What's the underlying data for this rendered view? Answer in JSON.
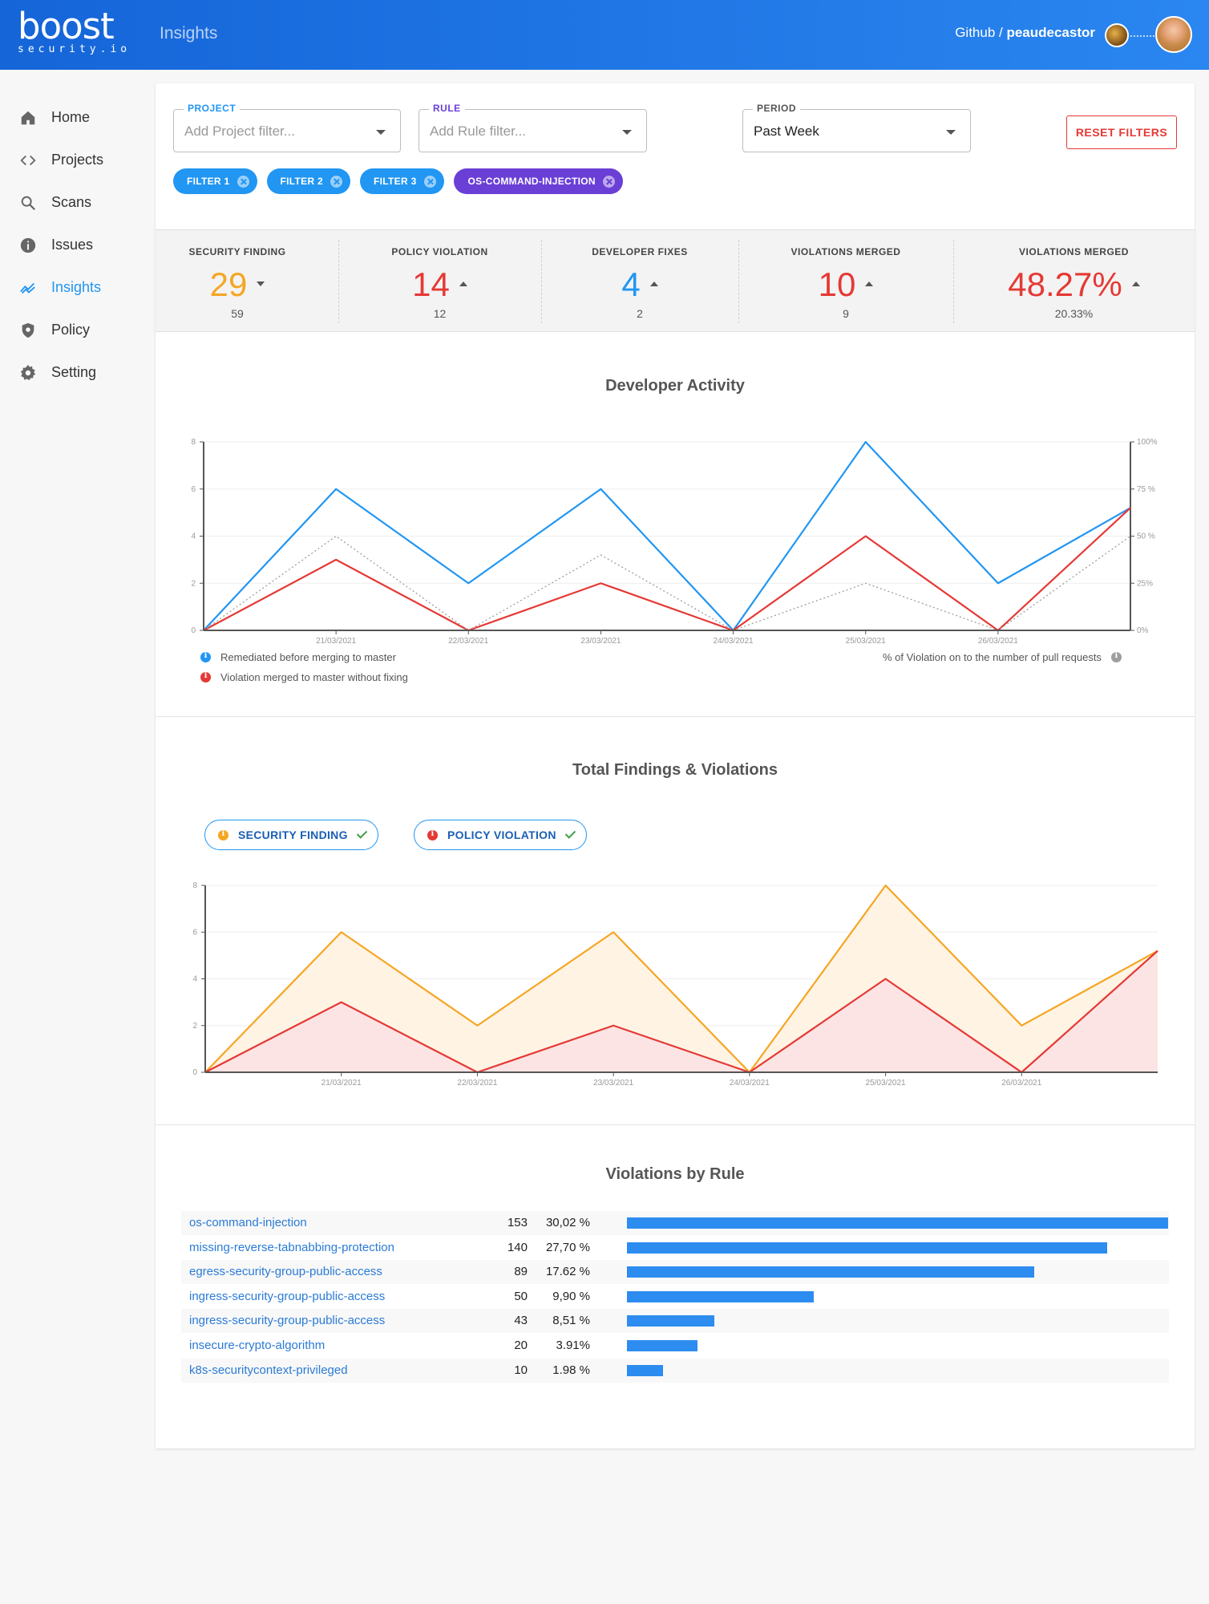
{
  "header": {
    "logo_word": "boost",
    "logo_sub": "security.io",
    "page_title": "Insights",
    "account_prefix": "Github / ",
    "account_user": "peaudecastor"
  },
  "sidebar": {
    "items": [
      {
        "label": "Home",
        "icon": "home-icon",
        "active": false
      },
      {
        "label": "Projects",
        "icon": "code-icon",
        "active": false
      },
      {
        "label": "Scans",
        "icon": "search-icon",
        "active": false
      },
      {
        "label": "Issues",
        "icon": "info-icon",
        "active": false
      },
      {
        "label": "Insights",
        "icon": "trending-icon",
        "active": true
      },
      {
        "label": "Policy",
        "icon": "shield-icon",
        "active": false
      },
      {
        "label": "Setting",
        "icon": "gear-icon",
        "active": false
      }
    ]
  },
  "filters": {
    "project": {
      "label": "PROJECT",
      "placeholder": "Add Project filter...",
      "color": "#2196f3"
    },
    "rule": {
      "label": "RULE",
      "placeholder": "Add Rule filter...",
      "color": "#6a3fd6"
    },
    "period": {
      "label": "PERIOD",
      "value": "Past Week"
    },
    "reset_label": "RESET FILTERS",
    "chips": [
      "FILTER 1",
      "FILTER 2",
      "FILTER 3",
      "OS-COMMAND-INJECTION"
    ]
  },
  "stats": [
    {
      "label": "SECURITY FINDING",
      "value": "29",
      "sub": "59",
      "trend": "down",
      "color": "#f5a623"
    },
    {
      "label": "POLICY VIOLATION",
      "value": "14",
      "sub": "12",
      "trend": "up",
      "color": "#e53935"
    },
    {
      "label": "DEVELOPER FIXES",
      "value": "4",
      "sub": "2",
      "trend": "up",
      "color": "#2196f3"
    },
    {
      "label": "VIOLATIONS MERGED",
      "value": "10",
      "sub": "9",
      "trend": "up",
      "color": "#e53935"
    },
    {
      "label": "VIOLATIONS MERGED",
      "value": "48.27%",
      "sub": "20.33%",
      "trend": "up",
      "color": "#e53935"
    }
  ],
  "developer_activity": {
    "title": "Developer Activity",
    "legend_remediated": "Remediated before merging to master",
    "legend_violation": "Violation merged to master without fixing",
    "legend_pct": "% of Violation on to the number of pull requests"
  },
  "total_findings": {
    "title": "Total Findings & Violations",
    "toggle_security": "SECURITY FINDING",
    "toggle_policy": "POLICY VIOLATION"
  },
  "violations_by_rule": {
    "title": "Violations by Rule",
    "rows": [
      {
        "name": "os-command-injection",
        "count": "153",
        "pct": "30,02 %",
        "ratio": 1.0
      },
      {
        "name": "missing-reverse-tabnabbing-protection",
        "count": "140",
        "pct": "27,70 %",
        "ratio": 0.888
      },
      {
        "name": "egress-security-group-public-access",
        "count": "89",
        "pct": "17.62 %",
        "ratio": 0.752
      },
      {
        "name": "ingress-security-group-public-access",
        "count": "50",
        "pct": "9,90 %",
        "ratio": 0.345
      },
      {
        "name": "ingress-security-group-public-access",
        "count": "43",
        "pct": "8,51 %",
        "ratio": 0.161
      },
      {
        "name": "insecure-crypto-algorithm",
        "count": "20",
        "pct": "3.91%",
        "ratio": 0.13
      },
      {
        "name": "k8s-securitycontext-privileged",
        "count": "10",
        "pct": "1.98 %",
        "ratio": 0.066
      }
    ]
  },
  "chart_data": [
    {
      "type": "line",
      "title": "Developer Activity",
      "x": [
        "",
        "21/03/2021",
        "22/03/2021",
        "23/03/2021",
        "24/03/2021",
        "25/03/2021",
        "26/03/2021",
        ""
      ],
      "ylim": [
        0,
        8
      ],
      "yticks": [
        "0",
        "2",
        "4",
        "6",
        "8"
      ],
      "y2ticks": [
        "0%",
        "25%",
        "50 %",
        "75 %",
        "100%"
      ],
      "series": [
        {
          "name": "Remediated before merging to master",
          "color": "#2196f3",
          "values": [
            0,
            6,
            2,
            6,
            0,
            8,
            2,
            5.2
          ]
        },
        {
          "name": "Violation merged to master without fixing",
          "color": "#e53935",
          "values": [
            0,
            3,
            0,
            2,
            0,
            4,
            0,
            5.2
          ]
        },
        {
          "name": "% of Violation on to the number of pull requests",
          "color": "#9e9e9e",
          "dashed": true,
          "values": [
            0,
            4,
            0,
            3.2,
            0,
            2,
            0,
            4
          ]
        }
      ]
    },
    {
      "type": "area",
      "title": "Total Findings & Violations",
      "x": [
        "",
        "21/03/2021",
        "22/03/2021",
        "23/03/2021",
        "24/03/2021",
        "25/03/2021",
        "26/03/2021",
        ""
      ],
      "ylim": [
        0,
        8
      ],
      "yticks": [
        "0",
        "2",
        "4",
        "6",
        "8"
      ],
      "series": [
        {
          "name": "SECURITY FINDING",
          "color": "#f5a623",
          "fill": "#fff3e4",
          "values": [
            0,
            6,
            2,
            6,
            0,
            8,
            2,
            5.2
          ]
        },
        {
          "name": "POLICY VIOLATION",
          "color": "#e53935",
          "fill": "#fce4e4",
          "values": [
            0,
            3,
            0,
            2,
            0,
            4,
            0,
            5.2
          ]
        }
      ]
    },
    {
      "type": "bar",
      "title": "Violations by Rule",
      "categories": [
        "os-command-injection",
        "missing-reverse-tabnabbing-protection",
        "egress-security-group-public-access",
        "ingress-security-group-public-access",
        "ingress-security-group-public-access",
        "insecure-crypto-algorithm",
        "k8s-securitycontext-privileged"
      ],
      "values": [
        153,
        140,
        89,
        50,
        43,
        20,
        10
      ]
    }
  ]
}
